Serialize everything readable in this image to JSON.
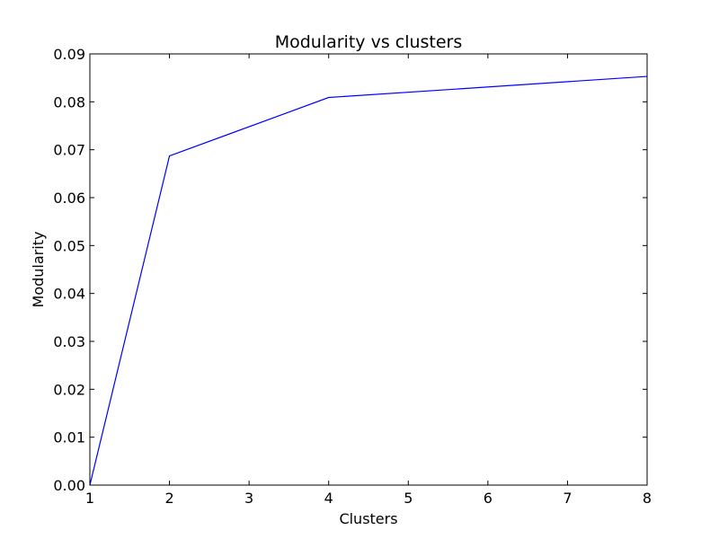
{
  "chart_data": {
    "type": "line",
    "title": "Modularity vs clusters",
    "xlabel": "Clusters",
    "ylabel": "Modularity",
    "xlim": [
      1,
      8
    ],
    "ylim": [
      0,
      0.09
    ],
    "x_ticks": [
      1,
      2,
      3,
      4,
      5,
      6,
      7,
      8
    ],
    "x_tick_labels": [
      "1",
      "2",
      "3",
      "4",
      "5",
      "6",
      "7",
      "8"
    ],
    "y_ticks": [
      0,
      0.01,
      0.02,
      0.03,
      0.04,
      0.05,
      0.06,
      0.07,
      0.08,
      0.09
    ],
    "y_tick_labels": [
      "0.00",
      "0.01",
      "0.02",
      "0.03",
      "0.04",
      "0.05",
      "0.06",
      "0.07",
      "0.08",
      "0.09"
    ],
    "grid": false,
    "legend": "none",
    "series": [
      {
        "color": "#0000ff",
        "x": [
          1,
          2,
          4,
          8
        ],
        "y": [
          0.0,
          0.0687,
          0.0809,
          0.0853
        ]
      }
    ]
  }
}
